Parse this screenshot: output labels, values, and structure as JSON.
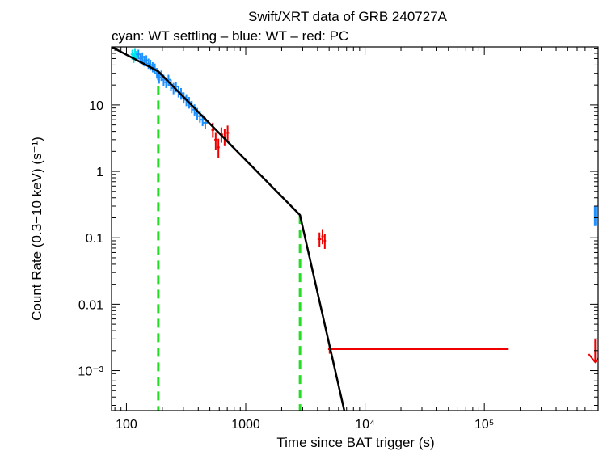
{
  "chart_data": {
    "type": "scatter",
    "title": "Swift/XRT data of GRB 240727A",
    "subtitle": "cyan: WT settling – blue: WT – red: PC",
    "xlabel": "Time since BAT trigger (s)",
    "ylabel": "Count Rate (0.3−10 keV) (s⁻¹)",
    "x_scale": "log",
    "y_scale": "log",
    "xlim": [
      75,
      900000
    ],
    "ylim": [
      0.00025,
      75
    ],
    "x_ticks": [
      {
        "value": 100,
        "label": "100"
      },
      {
        "value": 1000,
        "label": "1000"
      },
      {
        "value": 10000,
        "label": "10⁴"
      },
      {
        "value": 100000,
        "label": "10⁵"
      }
    ],
    "y_ticks": [
      {
        "value": 0.001,
        "label": "10⁻³"
      },
      {
        "value": 0.01,
        "label": "0.01"
      },
      {
        "value": 0.1,
        "label": "0.1"
      },
      {
        "value": 1,
        "label": "1"
      },
      {
        "value": 10,
        "label": "10"
      }
    ],
    "colors": {
      "wt_settling": "#00e5ee",
      "wt": "#1e90ff",
      "pc": "#ee0000",
      "model": "#000000",
      "breaks": "#22dd22"
    },
    "wt_settling": [
      {
        "x": 112,
        "y": 58,
        "ylo": 48,
        "yhi": 68
      },
      {
        "x": 115,
        "y": 52,
        "ylo": 43,
        "yhi": 62
      },
      {
        "x": 118,
        "y": 60,
        "ylo": 50,
        "yhi": 70
      },
      {
        "x": 121,
        "y": 55,
        "ylo": 46,
        "yhi": 65
      }
    ],
    "wt": [
      {
        "x": 126,
        "y": 58,
        "ylo": 49,
        "yhi": 68
      },
      {
        "x": 131,
        "y": 50,
        "ylo": 42,
        "yhi": 59
      },
      {
        "x": 136,
        "y": 53,
        "ylo": 44,
        "yhi": 62
      },
      {
        "x": 141,
        "y": 46,
        "ylo": 38,
        "yhi": 55
      },
      {
        "x": 147,
        "y": 47,
        "ylo": 39,
        "yhi": 56
      },
      {
        "x": 153,
        "y": 42,
        "ylo": 35,
        "yhi": 50
      },
      {
        "x": 159,
        "y": 40,
        "ylo": 33,
        "yhi": 48
      },
      {
        "x": 166,
        "y": 37,
        "ylo": 31,
        "yhi": 44
      },
      {
        "x": 173,
        "y": 35,
        "ylo": 29,
        "yhi": 42
      },
      {
        "x": 180,
        "y": 30,
        "ylo": 25,
        "yhi": 36
      },
      {
        "x": 188,
        "y": 26,
        "ylo": 21,
        "yhi": 31
      },
      {
        "x": 196,
        "y": 28,
        "ylo": 23,
        "yhi": 33
      },
      {
        "x": 205,
        "y": 24,
        "ylo": 19.5,
        "yhi": 28.5
      },
      {
        "x": 215,
        "y": 22,
        "ylo": 18,
        "yhi": 26
      },
      {
        "x": 225,
        "y": 24,
        "ylo": 19.5,
        "yhi": 28.5
      },
      {
        "x": 236,
        "y": 20,
        "ylo": 16.5,
        "yhi": 24
      },
      {
        "x": 248,
        "y": 18,
        "ylo": 14.5,
        "yhi": 21.5
      },
      {
        "x": 260,
        "y": 19,
        "ylo": 15.5,
        "yhi": 22.5
      },
      {
        "x": 273,
        "y": 16,
        "ylo": 13,
        "yhi": 19
      },
      {
        "x": 287,
        "y": 15,
        "ylo": 12,
        "yhi": 18
      },
      {
        "x": 302,
        "y": 13,
        "ylo": 10.5,
        "yhi": 15.5
      },
      {
        "x": 318,
        "y": 12,
        "ylo": 9.6,
        "yhi": 14.5
      },
      {
        "x": 335,
        "y": 11,
        "ylo": 8.8,
        "yhi": 13.2
      },
      {
        "x": 353,
        "y": 9.5,
        "ylo": 7.5,
        "yhi": 11.5
      },
      {
        "x": 372,
        "y": 8.5,
        "ylo": 6.8,
        "yhi": 10.2
      },
      {
        "x": 392,
        "y": 7.5,
        "ylo": 6,
        "yhi": 9
      },
      {
        "x": 413,
        "y": 6.8,
        "ylo": 5.4,
        "yhi": 8.2
      },
      {
        "x": 435,
        "y": 6,
        "ylo": 4.8,
        "yhi": 7.2
      },
      {
        "x": 458,
        "y": 5.4,
        "ylo": 4.3,
        "yhi": 6.5
      }
    ],
    "pc": [
      {
        "x": 530,
        "y": 4.2,
        "ylo": 3.2,
        "yhi": 5.4,
        "xlo": 515,
        "xhi": 545
      },
      {
        "x": 560,
        "y": 3,
        "ylo": 2.1,
        "yhi": 3.9,
        "xlo": 545,
        "xhi": 575
      },
      {
        "x": 590,
        "y": 2.3,
        "ylo": 1.6,
        "yhi": 3.1,
        "xlo": 575,
        "xhi": 605
      },
      {
        "x": 625,
        "y": 3.6,
        "ylo": 2.7,
        "yhi": 4.6,
        "xlo": 605,
        "xhi": 645
      },
      {
        "x": 665,
        "y": 3.3,
        "ylo": 2.4,
        "yhi": 4.3,
        "xlo": 645,
        "xhi": 685
      },
      {
        "x": 705,
        "y": 3.8,
        "ylo": 2.9,
        "yhi": 4.9,
        "xlo": 685,
        "xhi": 725
      },
      {
        "x": 4150,
        "y": 0.095,
        "ylo": 0.072,
        "yhi": 0.12,
        "xlo": 4000,
        "xhi": 4300
      },
      {
        "x": 4400,
        "y": 0.105,
        "ylo": 0.08,
        "yhi": 0.135,
        "xlo": 4300,
        "xhi": 4500
      },
      {
        "x": 4600,
        "y": 0.09,
        "ylo": 0.068,
        "yhi": 0.115,
        "xlo": 4500,
        "xhi": 4700
      },
      {
        "x": 5050,
        "y": 0.0021,
        "ylo": 0.0018,
        "yhi": 0.0024,
        "xlo": 4900,
        "xhi": 160000
      }
    ],
    "wt_upper_limit": {
      "x": 850000,
      "ylo": 0.15,
      "yhi": 0.3
    },
    "pc_upper_limit": {
      "x": 850000,
      "y": 0.0021
    },
    "model_line": [
      {
        "x": 75,
        "y": 75
      },
      {
        "x": 185,
        "y": 32
      },
      {
        "x": 2850,
        "y": 0.22
      },
      {
        "x": 6700,
        "y": 0.00025
      }
    ],
    "break_times": [
      {
        "x": 185,
        "y_top": 32
      },
      {
        "x": 2850,
        "y_top": 0.22
      }
    ]
  }
}
